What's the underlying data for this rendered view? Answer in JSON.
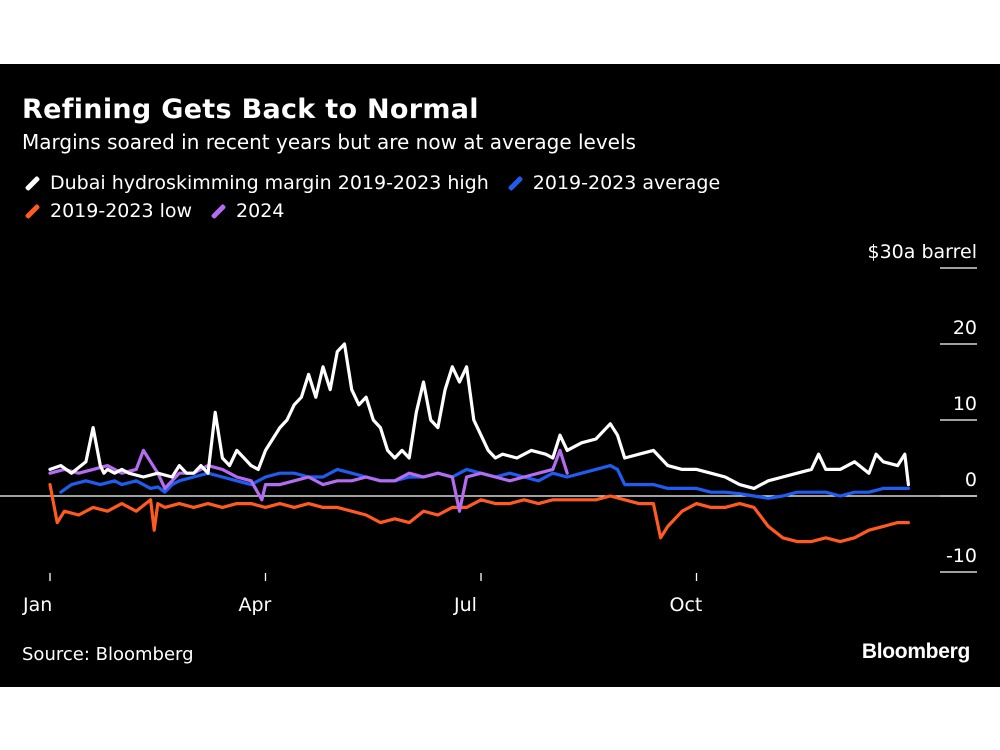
{
  "chart_data": {
    "type": "line",
    "title": "Refining Gets Back to Normal",
    "subtitle": "Margins soared in recent years but are now at average levels",
    "ylabel": "$30a barrel",
    "ylim": [
      -10,
      30
    ],
    "xlim": [
      0,
      12
    ],
    "y_ticks": [
      {
        "value": 30,
        "label": "$30a barrel"
      },
      {
        "value": 20,
        "label": "20"
      },
      {
        "value": 10,
        "label": "10"
      },
      {
        "value": 0,
        "label": "0"
      },
      {
        "value": -10,
        "label": "-10"
      }
    ],
    "x_ticks": [
      {
        "value": 0,
        "label": "Jan"
      },
      {
        "value": 3,
        "label": "Apr"
      },
      {
        "value": 6,
        "label": "Jul"
      },
      {
        "value": 9,
        "label": "Oct"
      }
    ],
    "legend_placement": "top-left",
    "grid": false,
    "series": [
      {
        "name": "Dubai hydroskimming margin 2019-2023 high",
        "color": "#ffffff",
        "x": [
          0,
          0.15,
          0.3,
          0.5,
          0.6,
          0.7,
          0.75,
          0.8,
          0.9,
          1.0,
          1.1,
          1.3,
          1.5,
          1.7,
          1.8,
          1.9,
          2.0,
          2.1,
          2.2,
          2.3,
          2.4,
          2.5,
          2.6,
          2.7,
          2.8,
          2.9,
          3.0,
          3.2,
          3.3,
          3.4,
          3.5,
          3.6,
          3.7,
          3.8,
          3.9,
          4.0,
          4.1,
          4.2,
          4.3,
          4.4,
          4.5,
          4.6,
          4.7,
          4.8,
          4.9,
          5.0,
          5.1,
          5.2,
          5.3,
          5.4,
          5.5,
          5.6,
          5.7,
          5.8,
          5.9,
          6.0,
          6.1,
          6.2,
          6.3,
          6.5,
          6.7,
          6.9,
          7.0,
          7.1,
          7.2,
          7.4,
          7.6,
          7.8,
          7.9,
          8.0,
          8.2,
          8.4,
          8.6,
          8.8,
          9.0,
          9.2,
          9.4,
          9.6,
          9.8,
          10.0,
          10.2,
          10.4,
          10.6,
          10.7,
          10.8,
          11.0,
          11.2,
          11.4,
          11.5,
          11.6,
          11.8,
          11.9,
          11.95
        ],
        "y": [
          3.5,
          4,
          3,
          4.5,
          9,
          4,
          3,
          3.5,
          3,
          3.5,
          3,
          2.5,
          3,
          2.5,
          4,
          3,
          3,
          4,
          3,
          11,
          5,
          4,
          6,
          5,
          4,
          3.5,
          6,
          9,
          10,
          12,
          13,
          16,
          13,
          17,
          14,
          19,
          20,
          14,
          12,
          13,
          10,
          9,
          6,
          5,
          6,
          5,
          11,
          15,
          10,
          9,
          14,
          17,
          15,
          17,
          10,
          8,
          6,
          5,
          5.5,
          5,
          6,
          5.5,
          5,
          8,
          6,
          7,
          7.5,
          9.5,
          8,
          5,
          5.5,
          6,
          4,
          3.5,
          3.5,
          3,
          2.5,
          1.5,
          1,
          2,
          2.5,
          3,
          3.5,
          5.5,
          3.5,
          3.5,
          4.5,
          3,
          5.5,
          4.5,
          4,
          5.5,
          1.5
        ]
      },
      {
        "name": "2019-2023 average",
        "color": "#1f5df0",
        "x": [
          0.15,
          0.3,
          0.5,
          0.7,
          0.9,
          1.0,
          1.2,
          1.4,
          1.5,
          1.6,
          1.7,
          1.8,
          2.0,
          2.2,
          2.4,
          2.6,
          2.8,
          3.0,
          3.2,
          3.4,
          3.6,
          3.8,
          4.0,
          4.2,
          4.4,
          4.6,
          4.8,
          5.0,
          5.2,
          5.4,
          5.6,
          5.8,
          6.0,
          6.2,
          6.4,
          6.6,
          6.8,
          7.0,
          7.2,
          7.4,
          7.6,
          7.8,
          7.9,
          8.0,
          8.2,
          8.4,
          8.6,
          8.8,
          9.0,
          9.2,
          9.4,
          9.6,
          9.8,
          10.0,
          10.2,
          10.4,
          10.6,
          10.8,
          11.0,
          11.2,
          11.4,
          11.6,
          11.8,
          11.95
        ],
        "y": [
          0.5,
          1.5,
          2,
          1.5,
          2,
          1.5,
          2,
          1,
          1.2,
          0.5,
          1.5,
          2,
          2.5,
          3,
          2.5,
          2,
          1.5,
          2.5,
          3,
          3,
          2.5,
          2.5,
          3.5,
          3,
          2.5,
          2,
          2,
          2.5,
          2.5,
          3,
          2.5,
          3.5,
          3,
          2.5,
          3,
          2.5,
          2,
          3,
          2.5,
          3,
          3.5,
          4,
          3.5,
          1.5,
          1.5,
          1.5,
          1,
          1,
          1,
          0.5,
          0.5,
          0.3,
          0,
          -0.3,
          0,
          0.5,
          0.5,
          0.5,
          0,
          0.5,
          0.5,
          1,
          1,
          1
        ]
      },
      {
        "name": "2019-2023 low",
        "color": "#ff5a1f",
        "x": [
          0,
          0.1,
          0.2,
          0.4,
          0.6,
          0.8,
          1.0,
          1.2,
          1.4,
          1.45,
          1.5,
          1.6,
          1.8,
          2.0,
          2.2,
          2.4,
          2.6,
          2.8,
          3.0,
          3.2,
          3.4,
          3.6,
          3.8,
          4.0,
          4.2,
          4.4,
          4.6,
          4.8,
          5.0,
          5.2,
          5.4,
          5.6,
          5.8,
          6.0,
          6.2,
          6.4,
          6.6,
          6.8,
          7.0,
          7.2,
          7.4,
          7.6,
          7.8,
          8.0,
          8.2,
          8.4,
          8.5,
          8.6,
          8.8,
          9.0,
          9.2,
          9.4,
          9.6,
          9.8,
          10.0,
          10.2,
          10.4,
          10.6,
          10.8,
          11.0,
          11.2,
          11.4,
          11.6,
          11.8,
          11.95
        ],
        "y": [
          1.5,
          -3.5,
          -2,
          -2.5,
          -1.5,
          -2,
          -1,
          -2,
          -0.5,
          -4.5,
          -1,
          -1.5,
          -1,
          -1.5,
          -1,
          -1.5,
          -1,
          -1,
          -1.5,
          -1,
          -1.5,
          -1,
          -1.5,
          -1.5,
          -2,
          -2.5,
          -3.5,
          -3,
          -3.5,
          -2,
          -2.5,
          -1.5,
          -1.5,
          -0.5,
          -1,
          -1,
          -0.5,
          -1,
          -0.5,
          -0.5,
          -0.5,
          -0.5,
          0,
          -0.5,
          -1,
          -1,
          -5.5,
          -4,
          -2,
          -1,
          -1.5,
          -1.5,
          -1,
          -1.5,
          -4,
          -5.5,
          -6,
          -6,
          -5.5,
          -6,
          -5.5,
          -4.5,
          -4,
          -3.5,
          -3.5
        ]
      },
      {
        "name": "2024",
        "color": "#b46cf0",
        "x": [
          0,
          0.2,
          0.4,
          0.6,
          0.8,
          1.0,
          1.2,
          1.3,
          1.4,
          1.5,
          1.6,
          1.8,
          2.0,
          2.2,
          2.4,
          2.6,
          2.8,
          2.95,
          3.0,
          3.2,
          3.4,
          3.6,
          3.8,
          4.0,
          4.2,
          4.4,
          4.6,
          4.8,
          5.0,
          5.2,
          5.4,
          5.6,
          5.7,
          5.8,
          6.0,
          6.2,
          6.4,
          6.6,
          6.8,
          7.0,
          7.1,
          7.2
        ],
        "y": [
          3,
          3.5,
          3,
          3.5,
          4,
          3,
          3.5,
          6,
          4.5,
          3,
          1,
          3,
          3,
          4,
          3.5,
          2.5,
          2,
          -0.5,
          1.5,
          1.5,
          2,
          2.5,
          1.5,
          2,
          2,
          2.5,
          2,
          2,
          3,
          2.5,
          3,
          2.5,
          -2,
          2.5,
          3,
          2.5,
          2,
          2.5,
          3,
          3.5,
          6,
          3
        ]
      }
    ],
    "source": "Source: Bloomberg",
    "brand": "Bloomberg"
  }
}
